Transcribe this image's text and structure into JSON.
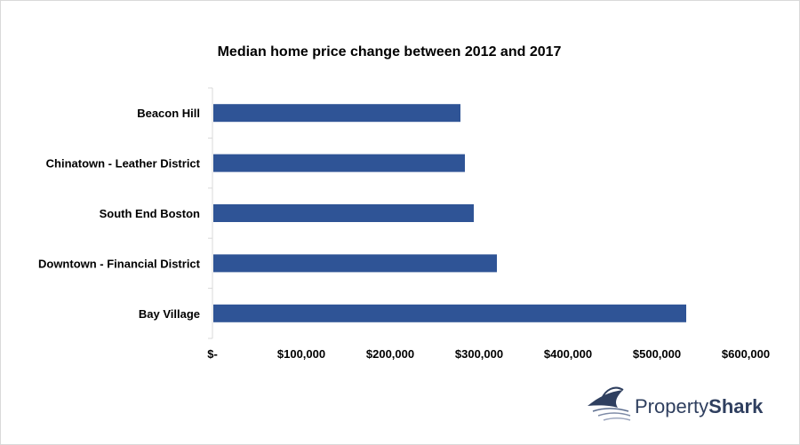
{
  "chart_data": {
    "type": "bar",
    "orientation": "horizontal",
    "title": "Median home price change between 2012 and 2017",
    "categories": [
      "Beacon Hill",
      "Chinatown - Leather District",
      "South End Boston",
      "Downtown - Financial District",
      "Bay Village"
    ],
    "values": [
      279000,
      284000,
      294000,
      320000,
      533000
    ],
    "xlim": [
      0,
      600000
    ],
    "x_ticks": [
      0,
      100000,
      200000,
      300000,
      400000,
      500000,
      600000
    ],
    "x_tick_labels": [
      "$-",
      "$100,000",
      "$200,000",
      "$300,000",
      "$400,000",
      "$500,000",
      "$600,000"
    ],
    "bar_color": "#2f5496",
    "grid": false,
    "legend": "none"
  },
  "logo": {
    "name": "shark-fin-logo-icon",
    "text_part1": "Property",
    "text_part2": "Shark",
    "color": "#2f3f5f"
  }
}
